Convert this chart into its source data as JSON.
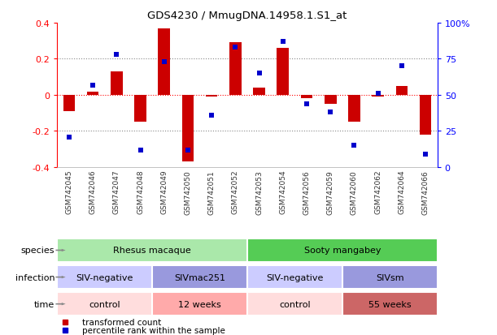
{
  "title": "GDS4230 / MmugDNA.14958.1.S1_at",
  "samples": [
    "GSM742045",
    "GSM742046",
    "GSM742047",
    "GSM742048",
    "GSM742049",
    "GSM742050",
    "GSM742051",
    "GSM742052",
    "GSM742053",
    "GSM742054",
    "GSM742056",
    "GSM742059",
    "GSM742060",
    "GSM742062",
    "GSM742064",
    "GSM742066"
  ],
  "transformed_count": [
    -0.09,
    0.02,
    0.13,
    -0.15,
    0.37,
    -0.37,
    -0.01,
    0.29,
    0.04,
    0.26,
    -0.02,
    -0.05,
    -0.15,
    -0.01,
    0.05,
    -0.22
  ],
  "percentile_rank": [
    21,
    57,
    78,
    12,
    73,
    12,
    36,
    83,
    65,
    87,
    44,
    38,
    15,
    51,
    70,
    9
  ],
  "bar_color": "#cc0000",
  "dot_color": "#0000cc",
  "ylim_left": [
    -0.4,
    0.4
  ],
  "ylim_right": [
    0,
    100
  ],
  "yticks_left": [
    -0.4,
    -0.2,
    0.0,
    0.2,
    0.4
  ],
  "ytick_labels_left": [
    "-0.4",
    "-0.2",
    "0",
    "0.2",
    "0.4"
  ],
  "yticks_right": [
    0,
    25,
    50,
    75,
    100
  ],
  "ytick_labels_right": [
    "0",
    "25",
    "50",
    "75",
    "100%"
  ],
  "hlines": [
    -0.2,
    0.0,
    0.2
  ],
  "species_groups": [
    {
      "label": "Rhesus macaque",
      "start": 0,
      "end": 7,
      "color": "#aae8aa"
    },
    {
      "label": "Sooty mangabey",
      "start": 8,
      "end": 15,
      "color": "#55cc55"
    }
  ],
  "infection_groups": [
    {
      "label": "SIV-negative",
      "start": 0,
      "end": 3,
      "color": "#ccccff"
    },
    {
      "label": "SIVmac251",
      "start": 4,
      "end": 7,
      "color": "#9999dd"
    },
    {
      "label": "SIV-negative",
      "start": 8,
      "end": 11,
      "color": "#ccccff"
    },
    {
      "label": "SIVsm",
      "start": 12,
      "end": 15,
      "color": "#9999dd"
    }
  ],
  "time_groups": [
    {
      "label": "control",
      "start": 0,
      "end": 3,
      "color": "#ffdddd"
    },
    {
      "label": "12 weeks",
      "start": 4,
      "end": 7,
      "color": "#ffaaaa"
    },
    {
      "label": "control",
      "start": 8,
      "end": 11,
      "color": "#ffdddd"
    },
    {
      "label": "55 weeks",
      "start": 12,
      "end": 15,
      "color": "#cc6666"
    }
  ],
  "row_labels": [
    "species",
    "infection",
    "time"
  ],
  "legend_items": [
    {
      "label": "transformed count",
      "color": "#cc0000"
    },
    {
      "label": "percentile rank within the sample",
      "color": "#0000cc"
    }
  ],
  "bar_width": 0.5,
  "dot_size": 18
}
